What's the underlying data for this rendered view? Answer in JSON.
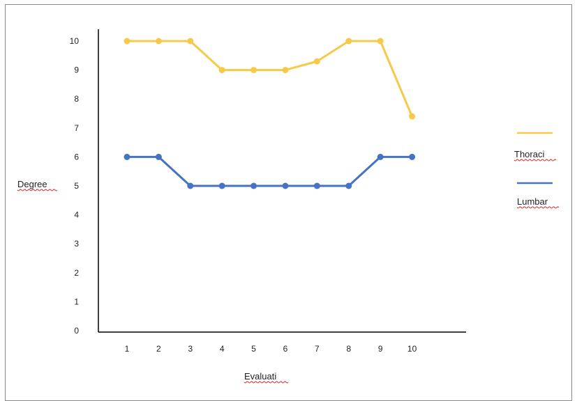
{
  "chart_data": {
    "type": "line",
    "xlabel": "Evaluati",
    "ylabel": "Degree",
    "categories": [
      "1",
      "2",
      "3",
      "4",
      "5",
      "6",
      "7",
      "8",
      "9",
      "10"
    ],
    "yticks": [
      0,
      1,
      2,
      3,
      4,
      5,
      6,
      7,
      8,
      9,
      10
    ],
    "ylim": [
      0,
      10
    ],
    "grid": false,
    "legend_position": "right",
    "series": [
      {
        "name": "Thoraci",
        "color": "#f7c948",
        "values": [
          10,
          10,
          10,
          9,
          9,
          9,
          9.3,
          10,
          10,
          7.4
        ]
      },
      {
        "name": "Lumbar",
        "color": "#4472c4",
        "values": [
          6,
          6,
          5,
          5,
          5,
          5,
          5,
          5,
          6,
          6
        ]
      }
    ]
  }
}
